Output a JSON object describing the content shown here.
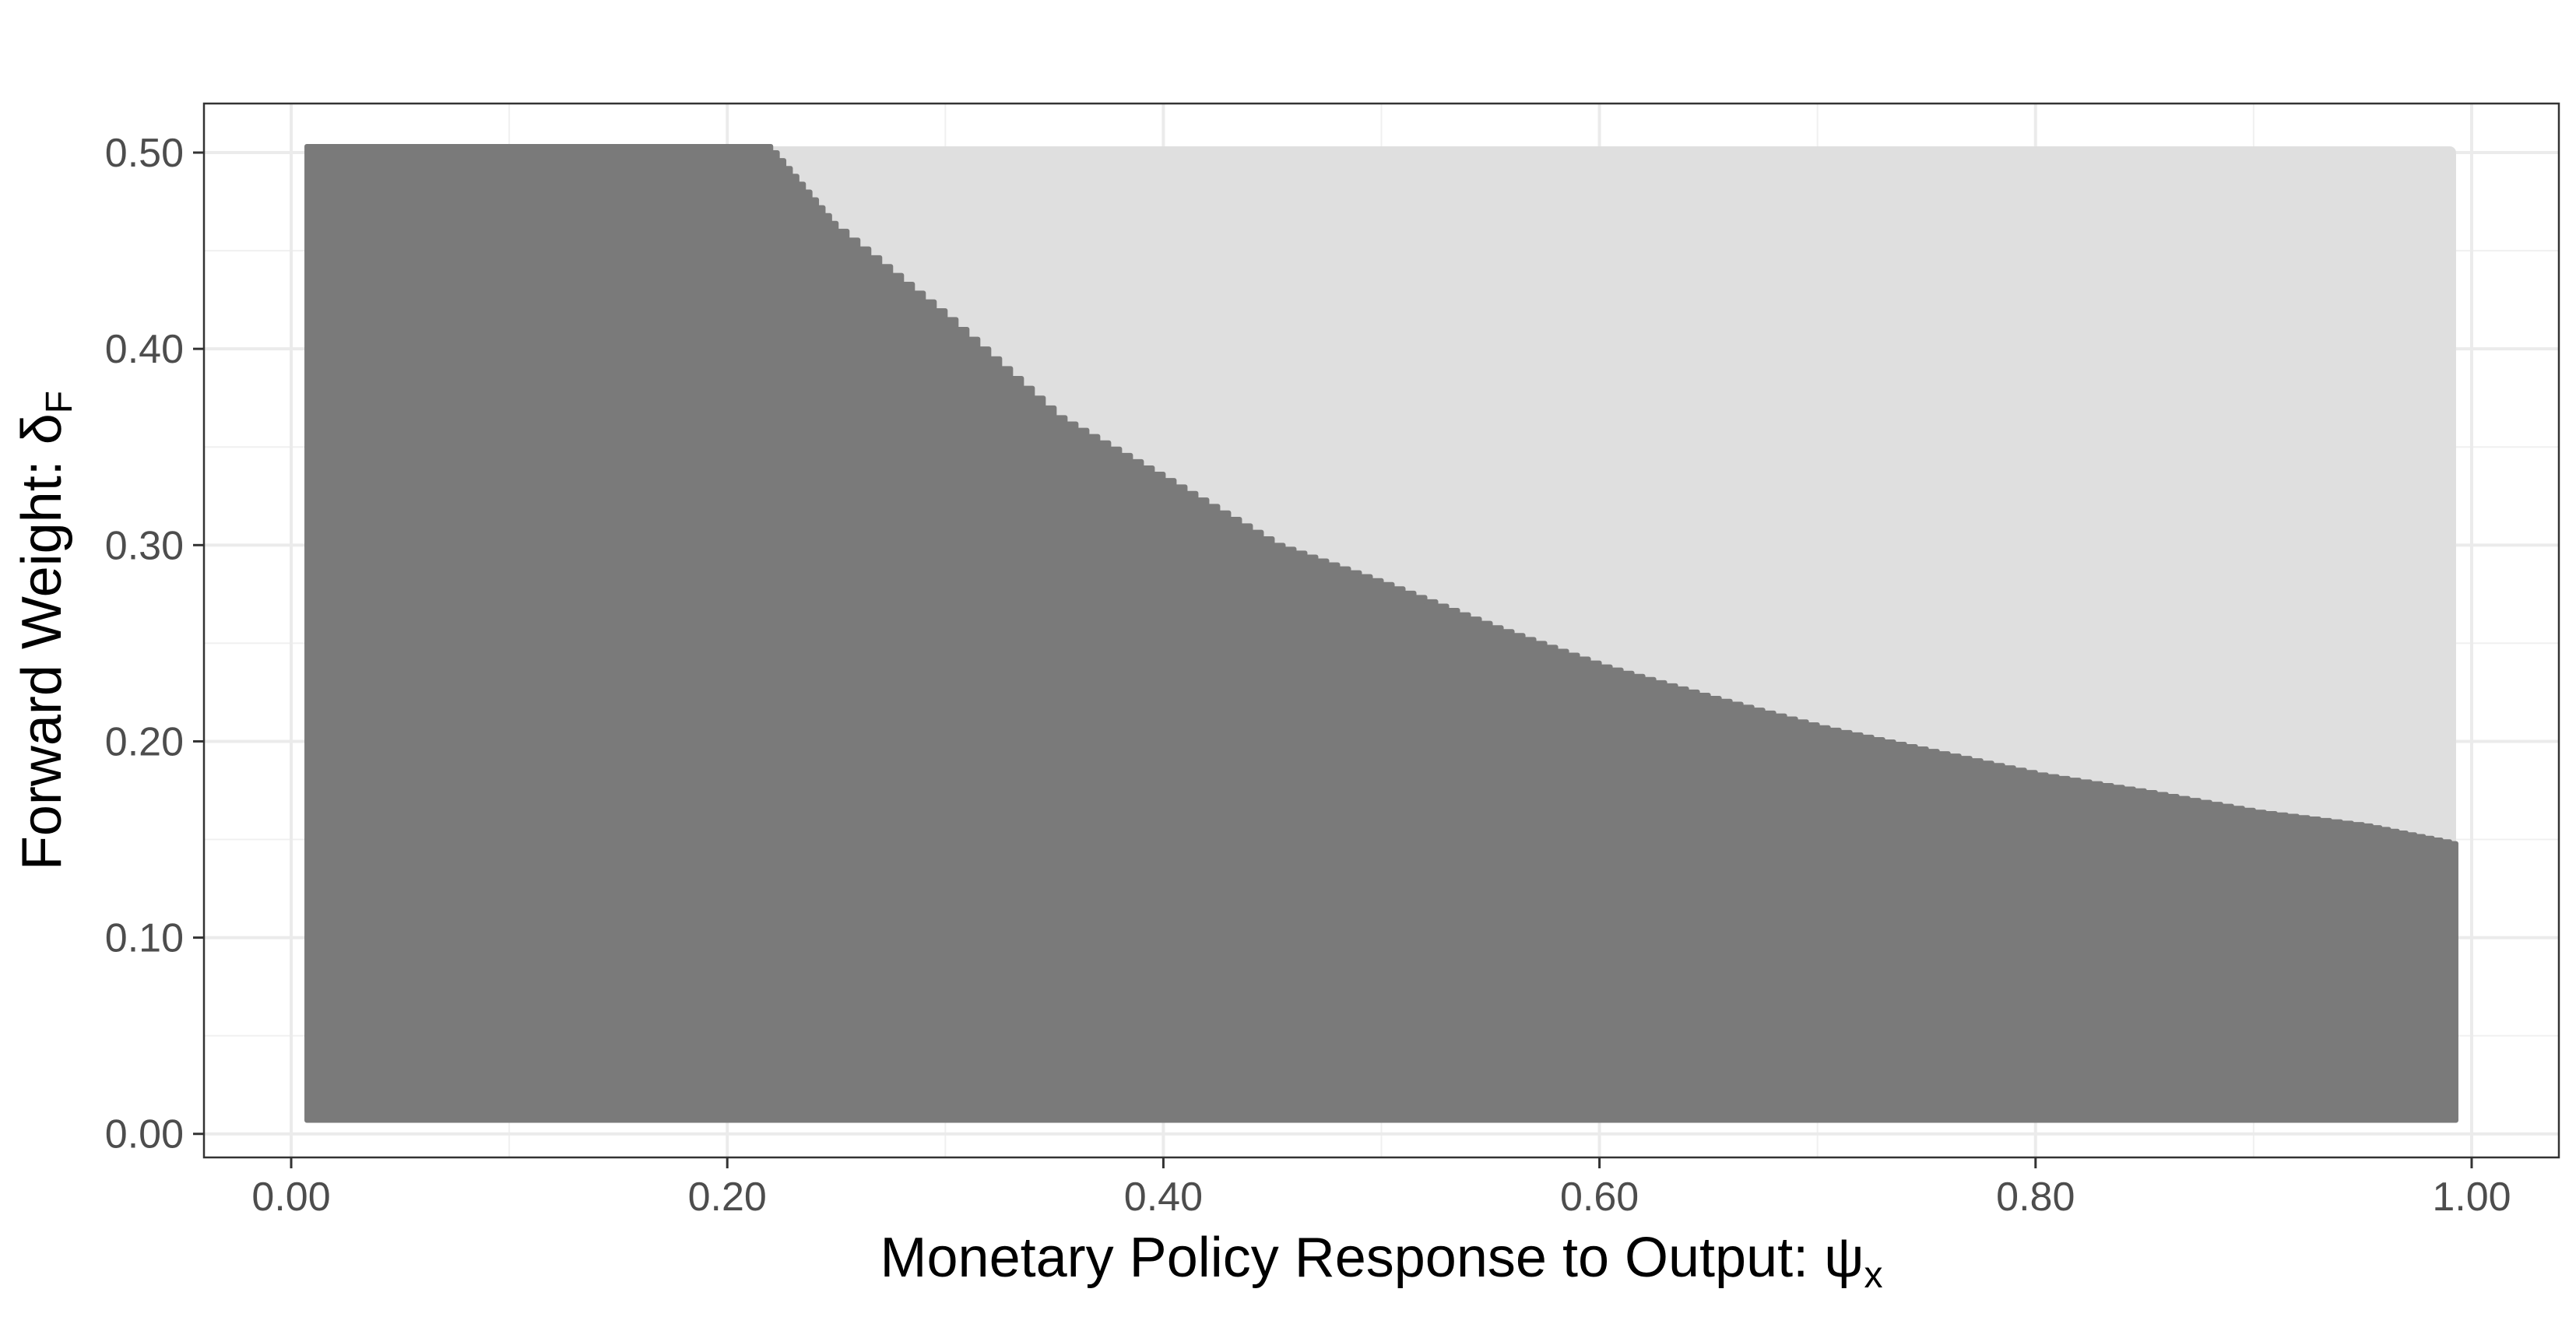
{
  "chart_data": {
    "type": "heatmap",
    "title": "",
    "xlabel": {
      "text": "Monetary Policy Response to Output: ",
      "symbol": "ψ",
      "subscript": "x"
    },
    "ylabel": {
      "text": "Forward Weight: ",
      "symbol": "δ",
      "subscript": "F"
    },
    "xlim": [
      -0.04,
      1.04
    ],
    "ylim": [
      -0.012,
      0.525
    ],
    "x_ticks": [
      0.0,
      0.2,
      0.4,
      0.6,
      0.8,
      1.0
    ],
    "x_tick_labels": [
      "0.00",
      "0.20",
      "0.40",
      "0.60",
      "0.80",
      "1.00"
    ],
    "y_ticks": [
      0.0,
      0.1,
      0.2,
      0.3,
      0.4,
      0.5
    ],
    "y_tick_labels": [
      "0.00",
      "0.10",
      "0.20",
      "0.30",
      "0.40",
      "0.50"
    ],
    "grid": true,
    "legend": "none",
    "grid_range": {
      "x": [
        0.01,
        0.99
      ],
      "y": [
        0.01,
        0.5
      ]
    },
    "series": [
      {
        "region": "dark",
        "color": "#7a7a7a"
      },
      {
        "region": "light",
        "color": "#dfdfdf"
      }
    ],
    "boundary": {
      "x": [
        0.22,
        0.25,
        0.3,
        0.35,
        0.4,
        0.45,
        0.5,
        0.55,
        0.6,
        0.65,
        0.7,
        0.75,
        0.8,
        0.85,
        0.9,
        0.95,
        0.99
      ],
      "y": [
        0.5,
        0.46,
        0.415,
        0.365,
        0.333,
        0.3,
        0.28,
        0.258,
        0.238,
        0.222,
        0.207,
        0.195,
        0.183,
        0.174,
        0.164,
        0.157,
        0.148
      ]
    }
  }
}
